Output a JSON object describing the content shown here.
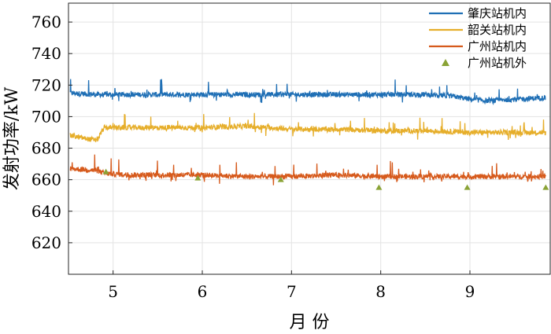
{
  "chart_data": {
    "type": "line",
    "ylabel": "发射功率/kW",
    "xlabel": "月 份",
    "xlim": [
      4.5,
      9.9
    ],
    "ylim": [
      600,
      772
    ],
    "x_ticks": [
      5,
      6,
      7,
      8,
      9
    ],
    "y_ticks": [
      620,
      640,
      660,
      680,
      700,
      720,
      740,
      760
    ],
    "grid": true,
    "legend_position": "top-right",
    "series": [
      {
        "name": "肇庆站机内",
        "kind": "line",
        "color": "#1f6fb5",
        "x": [
          4.52,
          4.8,
          5.1,
          5.5,
          6.0,
          6.5,
          7.0,
          7.5,
          8.0,
          8.5,
          8.8,
          9.0,
          9.2,
          9.5,
          9.85
        ],
        "y": [
          715,
          714,
          714,
          714,
          714,
          714,
          714,
          714,
          714,
          714,
          713,
          711,
          710,
          711,
          712
        ]
      },
      {
        "name": "韶关站机内",
        "kind": "line",
        "color": "#e6ae2a",
        "x": [
          4.52,
          4.7,
          4.82,
          4.9,
          5.2,
          5.6,
          6.0,
          6.5,
          7.0,
          7.5,
          8.0,
          8.5,
          9.0,
          9.5,
          9.85
        ],
        "y": [
          688,
          686,
          685,
          693,
          693,
          693,
          693,
          694,
          692,
          692,
          691,
          691,
          690,
          690,
          690
        ]
      },
      {
        "name": "广州站机内",
        "kind": "line",
        "color": "#d65a1c",
        "x": [
          4.52,
          4.8,
          4.9,
          5.2,
          5.6,
          6.0,
          6.5,
          7.0,
          7.5,
          8.0,
          8.5,
          9.0,
          9.5,
          9.85
        ],
        "y": [
          667,
          666,
          664,
          663,
          663,
          663,
          662,
          662,
          663,
          662,
          662,
          662,
          662,
          662
        ]
      },
      {
        "name": "广州站机外",
        "kind": "scatter",
        "color": "#8aa336",
        "x": [
          4.92,
          5.95,
          6.88,
          7.98,
          8.97,
          9.85
        ],
        "y": [
          665,
          661,
          660,
          655,
          655,
          655
        ]
      }
    ]
  }
}
